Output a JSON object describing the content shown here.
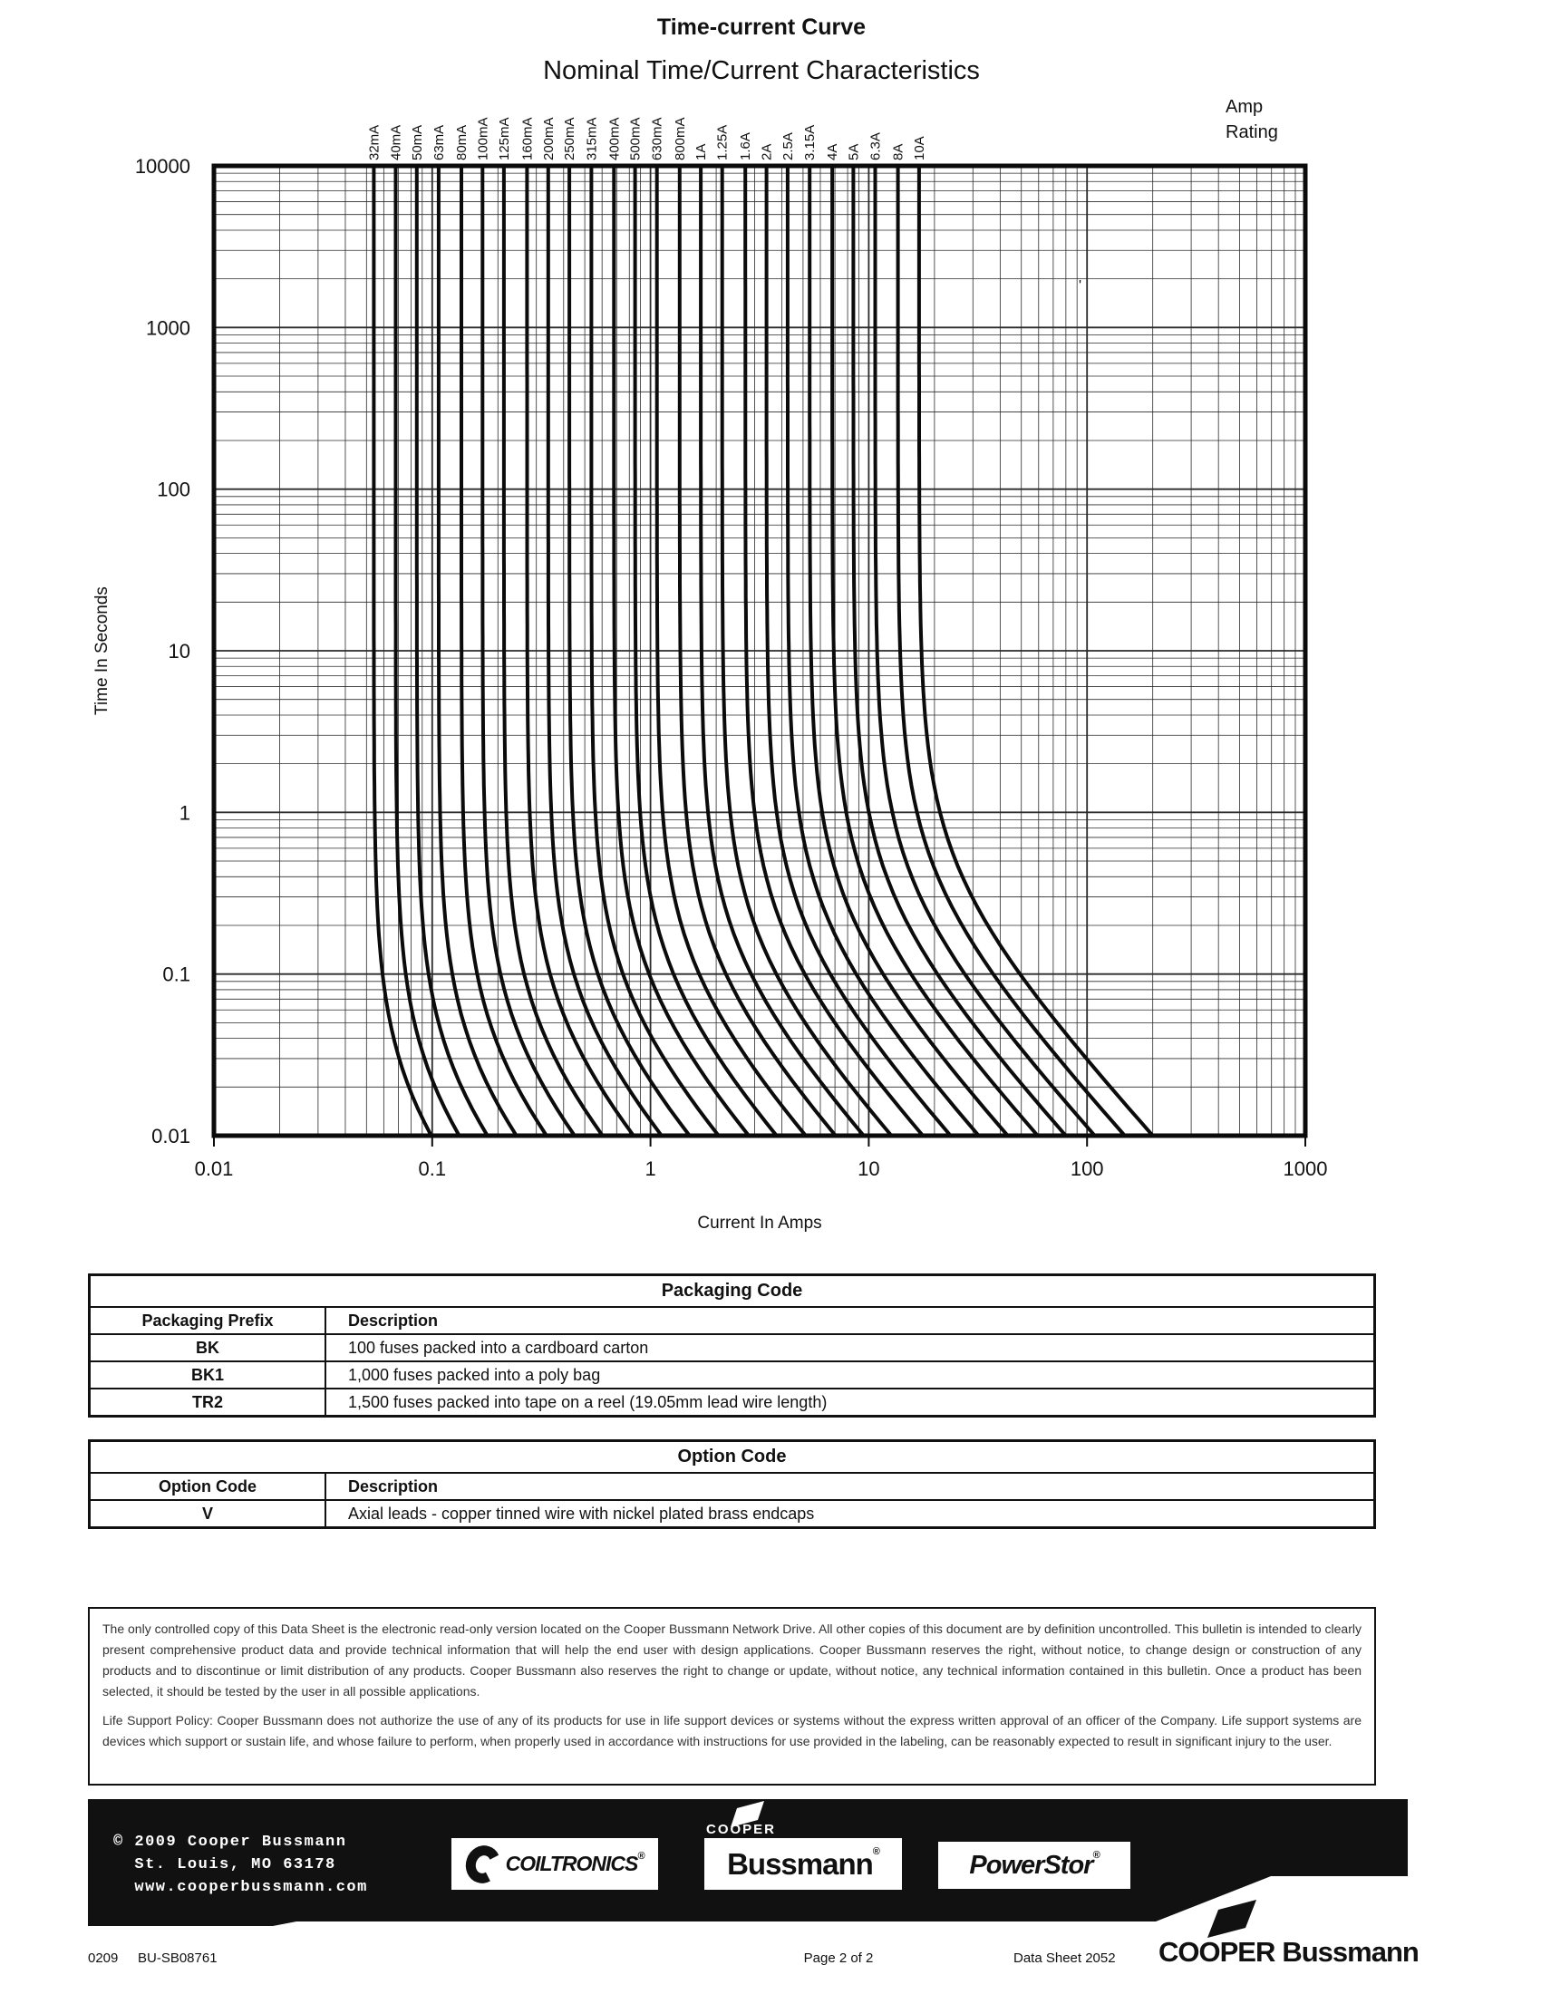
{
  "chart_data": {
    "type": "line",
    "title": "Time-current Curve",
    "subtitle": "Nominal Time/Current Characteristics",
    "xlabel": "Current In Amps",
    "ylabel": "Time In Seconds",
    "legend_title_lines": [
      "Amp",
      "Rating"
    ],
    "xlim": [
      0.01,
      1000
    ],
    "ylim": [
      0.01,
      10000
    ],
    "x_ticks": [
      "0.01",
      "0.1",
      "1",
      "10",
      "100",
      "1000"
    ],
    "y_ticks": [
      "10000",
      "1000",
      "100",
      "10",
      "1",
      "0.1",
      "0.01"
    ],
    "log_log": true,
    "grid": "log minor + major, both axes",
    "model": {
      "p": 1.5,
      "t_bottom": 0.01,
      "note": "t = K/(I^p - Imin^p); K from point (i_max, t_bottom)"
    },
    "curves": [
      {
        "label": "32mA",
        "rating": 0.032,
        "i_min": 0.054,
        "i_max": 0.099
      },
      {
        "label": "40mA",
        "rating": 0.04,
        "i_min": 0.068,
        "i_max": 0.133
      },
      {
        "label": "50mA",
        "rating": 0.05,
        "i_min": 0.085,
        "i_max": 0.179
      },
      {
        "label": "63mA",
        "rating": 0.063,
        "i_min": 0.107,
        "i_max": 0.243
      },
      {
        "label": "80mA",
        "rating": 0.08,
        "i_min": 0.136,
        "i_max": 0.334
      },
      {
        "label": "100mA",
        "rating": 0.1,
        "i_min": 0.17,
        "i_max": 0.449
      },
      {
        "label": "125mA",
        "rating": 0.125,
        "i_min": 0.213,
        "i_max": 0.603
      },
      {
        "label": "160mA",
        "rating": 0.16,
        "i_min": 0.272,
        "i_max": 0.836
      },
      {
        "label": "200mA",
        "rating": 0.2,
        "i_min": 0.34,
        "i_max": 1.124
      },
      {
        "label": "250mA",
        "rating": 0.25,
        "i_min": 0.425,
        "i_max": 1.51
      },
      {
        "label": "315mA",
        "rating": 0.315,
        "i_min": 0.536,
        "i_max": 2.05
      },
      {
        "label": "400mA",
        "rating": 0.4,
        "i_min": 0.68,
        "i_max": 2.82
      },
      {
        "label": "500mA",
        "rating": 0.5,
        "i_min": 0.85,
        "i_max": 3.78
      },
      {
        "label": "630mA",
        "rating": 0.63,
        "i_min": 1.07,
        "i_max": 5.14
      },
      {
        "label": "800mA",
        "rating": 0.8,
        "i_min": 1.36,
        "i_max": 7.05
      },
      {
        "label": "1A",
        "rating": 1,
        "i_min": 1.7,
        "i_max": 9.48
      },
      {
        "label": "1.25A",
        "rating": 1.25,
        "i_min": 2.13,
        "i_max": 12.7
      },
      {
        "label": "1.6A",
        "rating": 1.6,
        "i_min": 2.72,
        "i_max": 17.7
      },
      {
        "label": "2A",
        "rating": 2,
        "i_min": 3.4,
        "i_max": 23.7
      },
      {
        "label": "2.5A",
        "rating": 2.5,
        "i_min": 4.25,
        "i_max": 31.9
      },
      {
        "label": "3.15A",
        "rating": 3.15,
        "i_min": 5.36,
        "i_max": 43.3
      },
      {
        "label": "4A",
        "rating": 4,
        "i_min": 6.8,
        "i_max": 59.4
      },
      {
        "label": "5A",
        "rating": 5,
        "i_min": 8.5,
        "i_max": 79.9
      },
      {
        "label": "6.3A",
        "rating": 6.3,
        "i_min": 10.7,
        "i_max": 108.5
      },
      {
        "label": "8A",
        "rating": 8,
        "i_min": 13.6,
        "i_max": 148.8
      },
      {
        "label": "10A",
        "rating": 10,
        "i_min": 17,
        "i_max": 200
      }
    ],
    "scan_artifact": "'"
  },
  "packaging": {
    "title": "Packaging Code",
    "col1": "Packaging Prefix",
    "col2": "Description",
    "rows": [
      {
        "code": "BK",
        "desc": "100 fuses packed into a cardboard carton"
      },
      {
        "code": "BK1",
        "desc": "1,000 fuses packed into a poly bag"
      },
      {
        "code": "TR2",
        "desc": "1,500 fuses packed into tape on a reel (19.05mm lead wire length)"
      }
    ]
  },
  "option": {
    "title": "Option Code",
    "col1": "Option Code",
    "col2": "Description",
    "rows": [
      {
        "code": "V",
        "desc": "Axial leads - copper tinned wire with nickel plated brass endcaps"
      }
    ]
  },
  "disclaimer": {
    "p1": "The only controlled copy of this Data Sheet is the electronic read-only version located on the Cooper Bussmann Network Drive. All other copies of this document are by definition uncontrolled. This bulletin is intended to clearly present comprehensive product data and provide technical information that will help the end user with design applications. Cooper Bussmann reserves the right, without notice, to change design or construction of any products and to discontinue or limit distribution of any products. Cooper Bussmann also reserves the right to change or update, without notice, any technical information contained in this bulletin. Once a product has been selected, it should be tested by the user in all possible applications.",
    "p2": "Life Support Policy: Cooper Bussmann does not authorize the use of any of its products for use in life support devices or systems without the express written approval of an officer of the Company. Life support systems are devices which support or sustain life, and whose failure to perform, when properly used in accordance with instructions for use provided in the labeling, can be reasonably expected to result in significant injury to the user."
  },
  "footer": {
    "copyright": "© 2009 Cooper Bussmann",
    "address": "  St. Louis, MO 63178",
    "website": "  www.cooperbussmann.com",
    "coiltronics": "COILTRONICS",
    "bussmann": "Bussmann",
    "cooper_small": "COOPER",
    "powerstor": "PowerStor",
    "reg_mark": "®"
  },
  "page_footer": {
    "left1": "0209",
    "left2": "BU-SB08761",
    "center": "Page 2 of 2",
    "right": "Data Sheet 2052",
    "brand_cooper": "COOPER",
    "brand_bussmann": "Bussmann"
  }
}
